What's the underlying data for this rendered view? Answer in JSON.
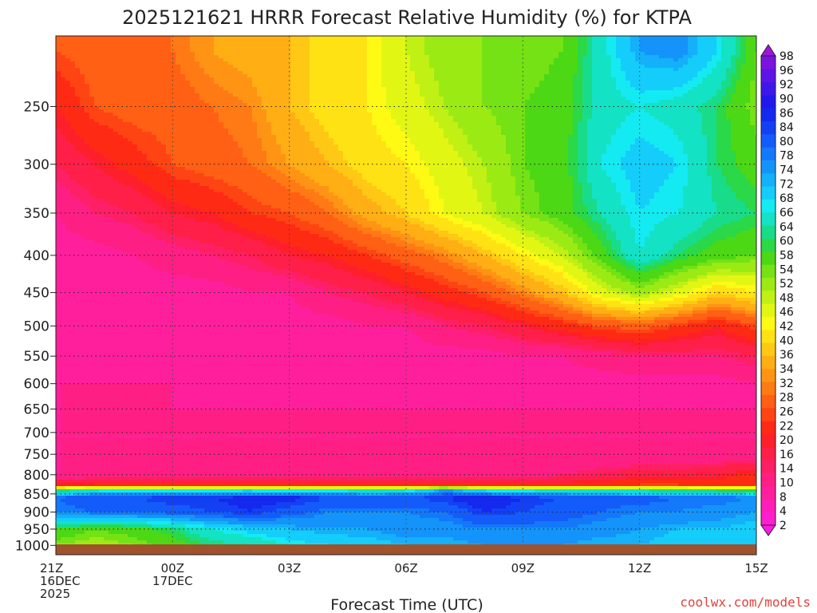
{
  "chart_data": {
    "type": "heatmap",
    "title": "2025121621 HRRR Forecast Relative Humidity (%) for KTPA",
    "xlabel": "Forecast Time (UTC)",
    "ylabel": "",
    "x_ticks": [
      {
        "hour": 0,
        "lines": [
          "21Z",
          "16DEC",
          "2025"
        ]
      },
      {
        "hour": 3,
        "lines": [
          "00Z",
          "17DEC"
        ]
      },
      {
        "hour": 6,
        "lines": [
          "03Z"
        ]
      },
      {
        "hour": 9,
        "lines": [
          "06Z"
        ]
      },
      {
        "hour": 12,
        "lines": [
          "09Z"
        ]
      },
      {
        "hour": 15,
        "lines": [
          "12Z"
        ]
      },
      {
        "hour": 18,
        "lines": [
          "15Z"
        ]
      }
    ],
    "xlim": [
      0,
      18
    ],
    "y_ticks": [
      250,
      300,
      350,
      400,
      450,
      500,
      550,
      600,
      650,
      700,
      750,
      800,
      850,
      900,
      950,
      1000
    ],
    "ylim": [
      1030,
      200
    ],
    "y_scale": "log",
    "grid": true,
    "colorbar_levels": [
      2,
      4,
      8,
      10,
      14,
      16,
      20,
      22,
      26,
      28,
      32,
      34,
      36,
      40,
      42,
      46,
      48,
      52,
      54,
      58,
      60,
      64,
      66,
      68,
      72,
      74,
      78,
      80,
      84,
      86,
      90,
      92,
      96,
      98
    ],
    "colorbar_colors": [
      "#ff19e8",
      "#ff1fd0",
      "#ff1fb8",
      "#ff1f9c",
      "#ff1f84",
      "#ff1f66",
      "#ff1f48",
      "#ff1f2a",
      "#ff2a14",
      "#ff4414",
      "#ff6014",
      "#ff7a14",
      "#ff9414",
      "#ffae14",
      "#ffc814",
      "#ffe214",
      "#fffa14",
      "#e2f614",
      "#c0f014",
      "#9cea14",
      "#74e214",
      "#4cd814",
      "#2ad848",
      "#18dc8a",
      "#14e2c4",
      "#14eaf2",
      "#14cdfa",
      "#14b0fa",
      "#1494fa",
      "#1478fa",
      "#145cfa",
      "#1440f4",
      "#1428ee",
      "#2218ec",
      "#3e18ea",
      "#5e14e6",
      "#7c14e0",
      "#a014dc"
    ],
    "series": [
      {
        "x": [
          0,
          1,
          2,
          3,
          4,
          5,
          6,
          7,
          8,
          9,
          10,
          11,
          12,
          13,
          14,
          15,
          16,
          17,
          18
        ],
        "p_levels": [
          210,
          250,
          300,
          350,
          400,
          450,
          500,
          550,
          600,
          650,
          700,
          750,
          800,
          825,
          840,
          860,
          900,
          950,
          1000
        ],
        "rh": [
          [
            28,
            30,
            30,
            32,
            36,
            38,
            40,
            44,
            46,
            52,
            56,
            58,
            58,
            60,
            70,
            80,
            82,
            74,
            60
          ],
          [
            22,
            28,
            30,
            30,
            32,
            34,
            40,
            44,
            46,
            50,
            54,
            58,
            60,
            62,
            70,
            72,
            70,
            66,
            58
          ],
          [
            16,
            20,
            24,
            28,
            30,
            32,
            36,
            40,
            44,
            46,
            50,
            54,
            60,
            62,
            72,
            76,
            74,
            66,
            62
          ],
          [
            10,
            14,
            16,
            20,
            22,
            26,
            28,
            32,
            38,
            42,
            48,
            52,
            58,
            62,
            68,
            74,
            72,
            68,
            66
          ],
          [
            8,
            8,
            10,
            12,
            14,
            16,
            20,
            22,
            26,
            30,
            34,
            40,
            46,
            52,
            62,
            72,
            66,
            62,
            60
          ],
          [
            8,
            8,
            8,
            8,
            8,
            10,
            10,
            14,
            16,
            20,
            24,
            28,
            34,
            40,
            50,
            56,
            50,
            42,
            46
          ],
          [
            8,
            8,
            8,
            8,
            8,
            8,
            8,
            8,
            10,
            10,
            14,
            16,
            20,
            24,
            28,
            30,
            26,
            22,
            28
          ],
          [
            8,
            8,
            8,
            8,
            8,
            8,
            8,
            8,
            8,
            8,
            8,
            8,
            10,
            10,
            12,
            14,
            14,
            14,
            16
          ],
          [
            10,
            10,
            10,
            10,
            8,
            8,
            8,
            8,
            8,
            8,
            8,
            8,
            8,
            8,
            8,
            8,
            8,
            8,
            10
          ],
          [
            10,
            10,
            10,
            10,
            10,
            10,
            10,
            10,
            10,
            10,
            10,
            10,
            10,
            10,
            10,
            10,
            10,
            10,
            10
          ],
          [
            10,
            10,
            10,
            10,
            10,
            10,
            10,
            10,
            10,
            10,
            10,
            10,
            10,
            10,
            10,
            10,
            10,
            10,
            10
          ],
          [
            10,
            10,
            10,
            10,
            10,
            10,
            10,
            10,
            10,
            10,
            10,
            10,
            10,
            10,
            10,
            10,
            10,
            10,
            10
          ],
          [
            10,
            10,
            10,
            10,
            10,
            10,
            10,
            10,
            10,
            10,
            10,
            10,
            10,
            14,
            16,
            18,
            18,
            20,
            24
          ],
          [
            20,
            22,
            22,
            22,
            22,
            22,
            24,
            24,
            24,
            22,
            22,
            22,
            22,
            22,
            24,
            26,
            26,
            24,
            26
          ],
          [
            64,
            70,
            72,
            72,
            72,
            72,
            70,
            72,
            68,
            70,
            80,
            72,
            70,
            70,
            68,
            66,
            66,
            64,
            62
          ],
          [
            86,
            90,
            90,
            92,
            92,
            94,
            94,
            90,
            90,
            90,
            92,
            96,
            92,
            90,
            88,
            88,
            86,
            86,
            84
          ],
          [
            84,
            86,
            86,
            88,
            90,
            92,
            88,
            84,
            84,
            84,
            86,
            92,
            90,
            88,
            86,
            84,
            84,
            82,
            80
          ],
          [
            64,
            60,
            62,
            66,
            72,
            76,
            78,
            80,
            80,
            82,
            82,
            84,
            84,
            84,
            82,
            80,
            78,
            78,
            76
          ],
          [
            58,
            56,
            58,
            62,
            66,
            68,
            72,
            74,
            76,
            78,
            78,
            80,
            80,
            80,
            78,
            78,
            76,
            76,
            74
          ]
        ]
      }
    ],
    "ground_color": "#a0522d"
  },
  "labels": {
    "credit": "coolwx.com/models"
  }
}
